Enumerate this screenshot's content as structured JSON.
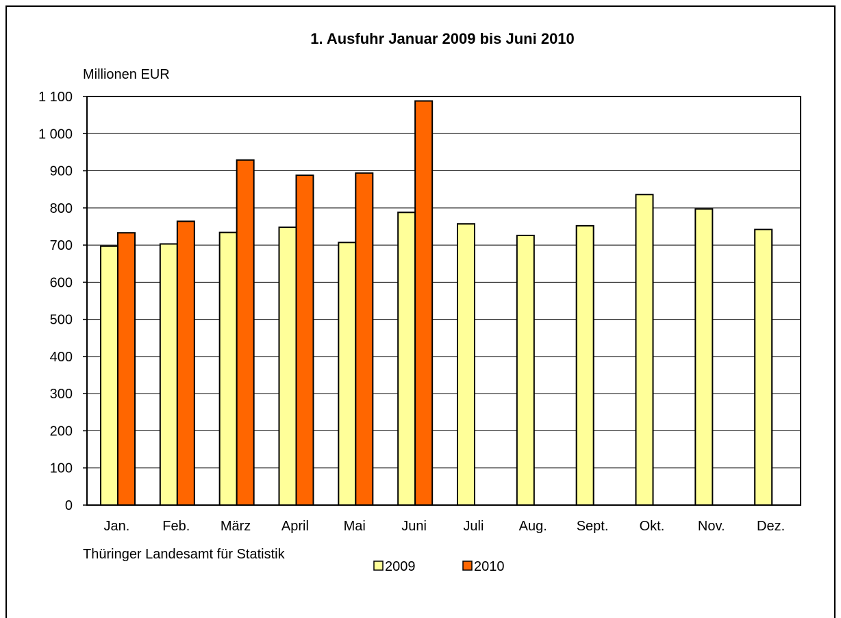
{
  "chart_data": {
    "type": "bar",
    "title": "1. Ausfuhr Januar 2009 bis Juni 2010",
    "ylabel": "Millionen EUR",
    "xlabel": "",
    "categories": [
      "Jan.",
      "Feb.",
      "März",
      "April",
      "Mai",
      "Juni",
      "Juli",
      "Aug.",
      "Sept.",
      "Okt.",
      "Nov.",
      "Dez."
    ],
    "ylim": [
      0,
      1100
    ],
    "yticks": [
      0,
      100,
      200,
      300,
      400,
      500,
      600,
      700,
      800,
      900,
      1000,
      1100
    ],
    "ytick_labels": [
      "0",
      "100",
      "200",
      "300",
      "400",
      "500",
      "600",
      "700",
      "800",
      "900",
      "1 000",
      "1 100"
    ],
    "grid": true,
    "legend_position": "bottom",
    "series": [
      {
        "name": "2009",
        "color": "#FFFF99",
        "values": [
          697,
          703,
          734,
          748,
          707,
          788,
          757,
          726,
          752,
          836,
          797,
          742
        ]
      },
      {
        "name": "2010",
        "color": "#FF6600",
        "values": [
          733,
          764,
          929,
          888,
          894,
          1088,
          null,
          null,
          null,
          null,
          null,
          null
        ]
      }
    ],
    "source": "Thüringer Landesamt für Statistik"
  }
}
